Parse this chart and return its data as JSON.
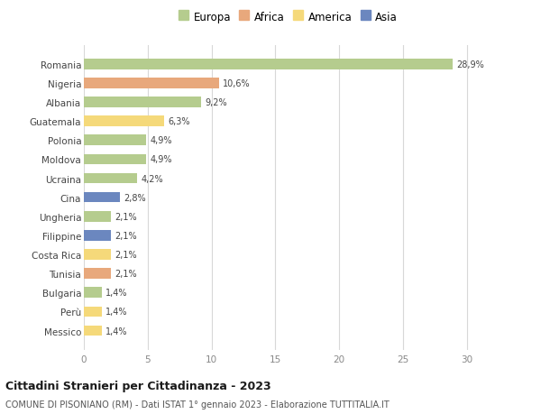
{
  "categories": [
    "Romania",
    "Nigeria",
    "Albania",
    "Guatemala",
    "Polonia",
    "Moldova",
    "Ucraina",
    "Cina",
    "Ungheria",
    "Filippine",
    "Costa Rica",
    "Tunisia",
    "Bulgaria",
    "Perù",
    "Messico"
  ],
  "values": [
    28.9,
    10.6,
    9.2,
    6.3,
    4.9,
    4.9,
    4.2,
    2.8,
    2.1,
    2.1,
    2.1,
    2.1,
    1.4,
    1.4,
    1.4
  ],
  "labels": [
    "28,9%",
    "10,6%",
    "9,2%",
    "6,3%",
    "4,9%",
    "4,9%",
    "4,2%",
    "2,8%",
    "2,1%",
    "2,1%",
    "2,1%",
    "2,1%",
    "1,4%",
    "1,4%",
    "1,4%"
  ],
  "colors": [
    "#b5cc8e",
    "#e8a87c",
    "#b5cc8e",
    "#f5d97a",
    "#b5cc8e",
    "#b5cc8e",
    "#b5cc8e",
    "#6b87bf",
    "#b5cc8e",
    "#6b87bf",
    "#f5d97a",
    "#e8a87c",
    "#b5cc8e",
    "#f5d97a",
    "#f5d97a"
  ],
  "continent": [
    "Europa",
    "Africa",
    "Europa",
    "America",
    "Europa",
    "Europa",
    "Europa",
    "Asia",
    "Europa",
    "Asia",
    "America",
    "Africa",
    "Europa",
    "America",
    "America"
  ],
  "legend_labels": [
    "Europa",
    "Africa",
    "America",
    "Asia"
  ],
  "legend_colors": [
    "#b5cc8e",
    "#e8a87c",
    "#f5d97a",
    "#6b87bf"
  ],
  "title": "Cittadini Stranieri per Cittadinanza - 2023",
  "subtitle": "COMUNE DI PISONIANO (RM) - Dati ISTAT 1° gennaio 2023 - Elaborazione TUTTITALIA.IT",
  "xlim": [
    0,
    32
  ],
  "xticks": [
    0,
    5,
    10,
    15,
    20,
    25,
    30
  ],
  "background_color": "#ffffff",
  "grid_color": "#d8d8d8",
  "bar_height": 0.55
}
